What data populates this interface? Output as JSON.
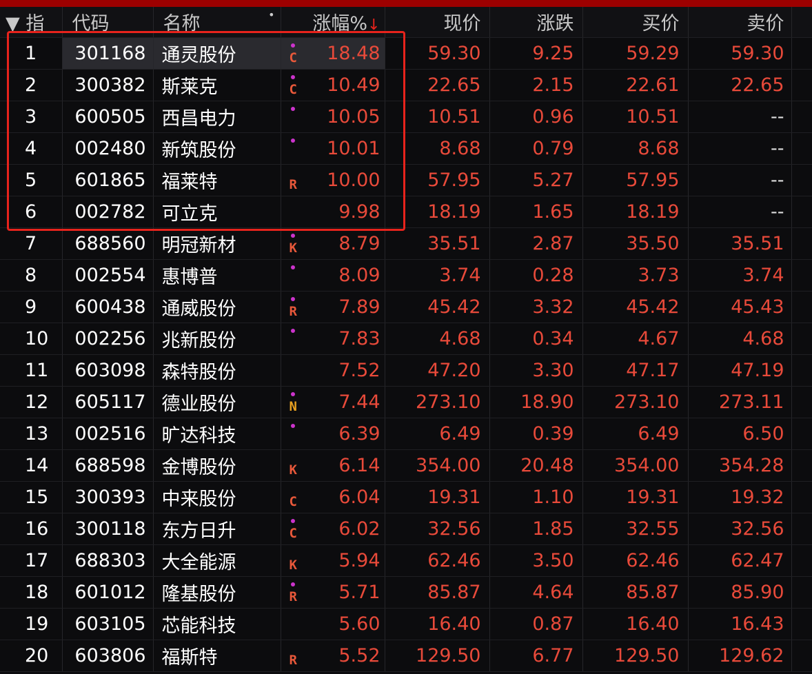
{
  "headers": {
    "idx": "▼ 指",
    "code": "代码",
    "name": "名称",
    "name_dot": "•",
    "change_pct": "涨幅%",
    "sort_arrow": "↓",
    "price": "现价",
    "change": "涨跌",
    "bid": "买价",
    "ask": "卖价"
  },
  "colors": {
    "up": "#e84a3a",
    "flag_dot": "#cc33cc",
    "highlight_box": "#e8231c",
    "top_bar": "#9c0000"
  },
  "rows": [
    {
      "i": "1",
      "code": "301168",
      "name": "通灵股份",
      "dot": true,
      "flag": "C",
      "pct": "18.48",
      "price": "59.30",
      "chg": "9.25",
      "bid": "59.29",
      "ask": "59.30"
    },
    {
      "i": "2",
      "code": "300382",
      "name": "斯莱克",
      "dot": true,
      "flag": "C",
      "pct": "10.49",
      "price": "22.65",
      "chg": "2.15",
      "bid": "22.61",
      "ask": "22.65"
    },
    {
      "i": "3",
      "code": "600505",
      "name": "西昌电力",
      "dot": true,
      "flag": "",
      "pct": "10.05",
      "price": "10.51",
      "chg": "0.96",
      "bid": "10.51",
      "ask": "--"
    },
    {
      "i": "4",
      "code": "002480",
      "name": "新筑股份",
      "dot": true,
      "flag": "",
      "pct": "10.01",
      "price": "8.68",
      "chg": "0.79",
      "bid": "8.68",
      "ask": "--"
    },
    {
      "i": "5",
      "code": "601865",
      "name": "福莱特",
      "dot": false,
      "flag": "R",
      "pct": "10.00",
      "price": "57.95",
      "chg": "5.27",
      "bid": "57.95",
      "ask": "--"
    },
    {
      "i": "6",
      "code": "002782",
      "name": "可立克",
      "dot": false,
      "flag": "",
      "pct": "9.98",
      "price": "18.19",
      "chg": "1.65",
      "bid": "18.19",
      "ask": "--"
    },
    {
      "i": "7",
      "code": "688560",
      "name": "明冠新材",
      "dot": true,
      "flag": "K",
      "pct": "8.79",
      "price": "35.51",
      "chg": "2.87",
      "bid": "35.50",
      "ask": "35.51"
    },
    {
      "i": "8",
      "code": "002554",
      "name": "惠博普",
      "dot": true,
      "flag": "",
      "pct": "8.09",
      "price": "3.74",
      "chg": "0.28",
      "bid": "3.73",
      "ask": "3.74"
    },
    {
      "i": "9",
      "code": "600438",
      "name": "通威股份",
      "dot": true,
      "flag": "R",
      "pct": "7.89",
      "price": "45.42",
      "chg": "3.32",
      "bid": "45.42",
      "ask": "45.43"
    },
    {
      "i": "10",
      "code": "002256",
      "name": "兆新股份",
      "dot": true,
      "flag": "",
      "pct": "7.83",
      "price": "4.68",
      "chg": "0.34",
      "bid": "4.67",
      "ask": "4.68"
    },
    {
      "i": "11",
      "code": "603098",
      "name": "森特股份",
      "dot": false,
      "flag": "",
      "pct": "7.52",
      "price": "47.20",
      "chg": "3.30",
      "bid": "47.17",
      "ask": "47.19"
    },
    {
      "i": "12",
      "code": "605117",
      "name": "德业股份",
      "dot": true,
      "flag": "N",
      "pct": "7.44",
      "price": "273.10",
      "chg": "18.90",
      "bid": "273.10",
      "ask": "273.11"
    },
    {
      "i": "13",
      "code": "002516",
      "name": "旷达科技",
      "dot": true,
      "flag": "",
      "pct": "6.39",
      "price": "6.49",
      "chg": "0.39",
      "bid": "6.49",
      "ask": "6.50"
    },
    {
      "i": "14",
      "code": "688598",
      "name": "金博股份",
      "dot": false,
      "flag": "K",
      "pct": "6.14",
      "price": "354.00",
      "chg": "20.48",
      "bid": "354.00",
      "ask": "354.28"
    },
    {
      "i": "15",
      "code": "300393",
      "name": "中来股份",
      "dot": false,
      "flag": "C",
      "pct": "6.04",
      "price": "19.31",
      "chg": "1.10",
      "bid": "19.31",
      "ask": "19.32"
    },
    {
      "i": "16",
      "code": "300118",
      "name": "东方日升",
      "dot": true,
      "flag": "C",
      "pct": "6.02",
      "price": "32.56",
      "chg": "1.85",
      "bid": "32.55",
      "ask": "32.56"
    },
    {
      "i": "17",
      "code": "688303",
      "name": "大全能源",
      "dot": false,
      "flag": "K",
      "pct": "5.94",
      "price": "62.46",
      "chg": "3.50",
      "bid": "62.46",
      "ask": "62.47"
    },
    {
      "i": "18",
      "code": "601012",
      "name": "隆基股份",
      "dot": true,
      "flag": "R",
      "pct": "5.71",
      "price": "85.87",
      "chg": "4.64",
      "bid": "85.87",
      "ask": "85.90"
    },
    {
      "i": "19",
      "code": "603105",
      "name": "芯能科技",
      "dot": false,
      "flag": "",
      "pct": "5.60",
      "price": "16.40",
      "chg": "0.87",
      "bid": "16.40",
      "ask": "16.43"
    },
    {
      "i": "20",
      "code": "603806",
      "name": "福斯特",
      "dot": false,
      "flag": "R",
      "pct": "5.52",
      "price": "129.50",
      "chg": "6.77",
      "bid": "129.50",
      "ask": "129.62"
    }
  ]
}
